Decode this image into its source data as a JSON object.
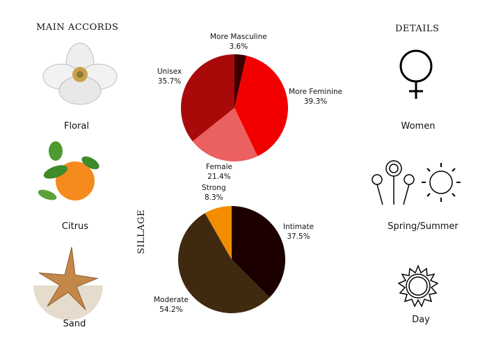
{
  "accords": {
    "heading": "MAIN ACCORDS",
    "items": [
      {
        "label": "Floral",
        "icon": "magnolia-flower-icon"
      },
      {
        "label": "Citrus",
        "icon": "orange-fruit-icon"
      },
      {
        "label": "Sand",
        "icon": "starfish-sand-icon"
      }
    ]
  },
  "details": {
    "heading": "DETAILS",
    "items": [
      {
        "label": "Women",
        "icon": "female-symbol-icon"
      },
      {
        "label": "Spring/Summer",
        "icon": "flowers-sun-icon"
      },
      {
        "label": "Day",
        "icon": "sun-icon"
      }
    ]
  },
  "chart_data": [
    {
      "type": "pie",
      "title": "",
      "slices": [
        {
          "label": "More Masculine",
          "value": 3.6,
          "display": "3.6%",
          "color": "#3d0000"
        },
        {
          "label": "More Feminine",
          "value": 39.3,
          "display": "39.3%",
          "color": "#f20000"
        },
        {
          "label": "Female",
          "value": 21.4,
          "display": "21.4%",
          "color": "#eb6060"
        },
        {
          "label": "Unisex",
          "value": 35.7,
          "display": "35.7%",
          "color": "#a80a0a"
        }
      ]
    },
    {
      "type": "pie",
      "title": "SILLAGE",
      "slices": [
        {
          "label": "Intimate",
          "value": 37.5,
          "display": "37.5%",
          "color": "#1c0000"
        },
        {
          "label": "Moderate",
          "value": 54.2,
          "display": "54.2%",
          "color": "#3f2a10"
        },
        {
          "label": "Strong",
          "value": 8.3,
          "display": "8.3%",
          "color": "#f28c00"
        }
      ]
    }
  ]
}
